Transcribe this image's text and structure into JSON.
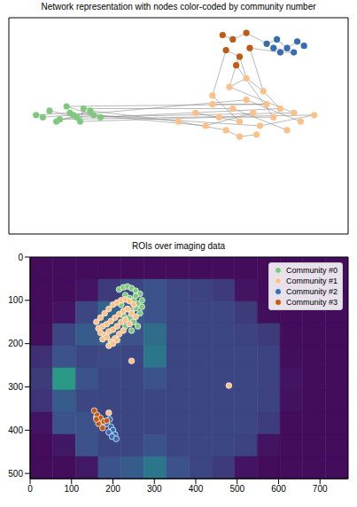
{
  "chart_data": [
    {
      "type": "network",
      "title": "Network representation with nodes color-coded by community number",
      "xlim": [
        0,
        100
      ],
      "ylim": [
        0,
        100
      ],
      "tick_labels": false,
      "series": [
        {
          "color": "#7fc97f",
          "x": [
            8,
            12,
            15,
            18,
            20,
            22,
            25,
            14,
            17,
            21,
            24,
            27,
            10,
            19
          ],
          "y": [
            55,
            57,
            53,
            56,
            54,
            58,
            55,
            52,
            59,
            52,
            57,
            54,
            54,
            55
          ]
        },
        {
          "color": "#fdc086",
          "x": [
            50,
            55,
            58,
            60,
            62,
            64,
            66,
            68,
            70,
            72,
            74,
            76,
            78,
            80,
            82,
            84,
            86,
            90,
            65,
            70,
            75,
            60,
            68,
            73
          ],
          "y": [
            52,
            56,
            50,
            60,
            54,
            48,
            58,
            52,
            62,
            56,
            50,
            60,
            54,
            58,
            48,
            56,
            52,
            55,
            68,
            72,
            66,
            64,
            45,
            46
          ]
        },
        {
          "color": "#386cb0",
          "x": [
            76,
            79,
            82,
            85,
            87,
            80,
            84,
            78
          ],
          "y": [
            88,
            90,
            86,
            89,
            87,
            84,
            84,
            86
          ]
        },
        {
          "color": "#bf5b17",
          "x": [
            63,
            66,
            70,
            64,
            68,
            71,
            67
          ],
          "y": [
            92,
            90,
            93,
            85,
            82,
            86,
            78
          ]
        }
      ],
      "edges": [
        [
          0,
          0,
          0,
          3
        ],
        [
          0,
          1,
          0,
          4
        ],
        [
          0,
          2,
          0,
          6
        ],
        [
          0,
          5,
          0,
          9
        ],
        [
          0,
          7,
          0,
          10
        ],
        [
          0,
          8,
          0,
          11
        ],
        [
          0,
          12,
          0,
          13
        ],
        [
          0,
          3,
          1,
          2
        ],
        [
          0,
          5,
          1,
          6
        ],
        [
          0,
          6,
          1,
          10
        ],
        [
          0,
          9,
          1,
          4
        ],
        [
          0,
          11,
          1,
          13
        ],
        [
          0,
          13,
          1,
          8
        ],
        [
          0,
          4,
          1,
          15
        ],
        [
          0,
          10,
          1,
          0
        ],
        [
          0,
          2,
          1,
          17
        ],
        [
          0,
          8,
          1,
          11
        ],
        [
          1,
          0,
          1,
          5
        ],
        [
          1,
          1,
          1,
          7
        ],
        [
          1,
          2,
          1,
          9
        ],
        [
          1,
          3,
          1,
          11
        ],
        [
          1,
          4,
          1,
          12
        ],
        [
          1,
          6,
          1,
          14
        ],
        [
          1,
          8,
          1,
          16
        ],
        [
          1,
          10,
          1,
          17
        ],
        [
          1,
          18,
          1,
          19
        ],
        [
          1,
          19,
          1,
          20
        ],
        [
          1,
          21,
          1,
          7
        ],
        [
          1,
          22,
          1,
          23
        ],
        [
          1,
          13,
          1,
          20
        ],
        [
          1,
          5,
          1,
          22
        ],
        [
          1,
          15,
          1,
          18
        ],
        [
          1,
          18,
          3,
          6
        ],
        [
          1,
          19,
          3,
          4
        ],
        [
          1,
          20,
          3,
          5
        ],
        [
          1,
          21,
          3,
          3
        ],
        [
          1,
          12,
          3,
          6
        ],
        [
          3,
          0,
          3,
          1
        ],
        [
          3,
          1,
          3,
          2
        ],
        [
          3,
          3,
          3,
          4
        ],
        [
          3,
          4,
          3,
          6
        ],
        [
          3,
          2,
          2,
          0
        ],
        [
          3,
          5,
          2,
          5
        ],
        [
          2,
          0,
          2,
          1
        ],
        [
          2,
          1,
          2,
          2
        ],
        [
          2,
          2,
          2,
          3
        ],
        [
          2,
          3,
          2,
          4
        ],
        [
          2,
          5,
          2,
          6
        ],
        [
          2,
          6,
          2,
          7
        ]
      ]
    },
    {
      "type": "scatter",
      "title": "ROIs over imaging data",
      "xlim": [
        0,
        768
      ],
      "ylim": [
        512,
        0
      ],
      "xticks": [
        0,
        100,
        200,
        300,
        400,
        500,
        600,
        700
      ],
      "yticks": [
        0,
        100,
        200,
        300,
        400,
        500
      ],
      "legend": "upper right",
      "crange": [
        0,
        1.4
      ],
      "cells": [
        [
          0.05,
          0.05,
          0.05,
          0.05,
          0.05,
          0.05,
          0.05,
          0.05,
          0.05,
          0.05,
          0.05,
          0.05,
          0.05,
          0.05
        ],
        [
          0.05,
          0.05,
          0.08,
          0.25,
          0.3,
          0.35,
          0.3,
          0.28,
          0.25,
          0.08,
          0.05,
          0.05,
          0.05,
          0.05
        ],
        [
          0.05,
          0.08,
          0.3,
          0.45,
          0.4,
          0.35,
          0.3,
          0.3,
          0.3,
          0.25,
          0.06,
          0.05,
          0.05,
          0.05
        ],
        [
          0.06,
          0.3,
          0.4,
          0.45,
          0.35,
          0.5,
          0.3,
          0.3,
          0.3,
          0.28,
          0.25,
          0.05,
          0.05,
          0.05
        ],
        [
          0.2,
          0.35,
          0.3,
          0.32,
          0.3,
          0.55,
          0.3,
          0.3,
          0.3,
          0.3,
          0.28,
          0.06,
          0.05,
          0.05
        ],
        [
          0.25,
          0.75,
          0.35,
          0.3,
          0.3,
          0.35,
          0.3,
          0.3,
          0.3,
          0.3,
          0.28,
          0.08,
          0.05,
          0.05
        ],
        [
          0.22,
          0.4,
          0.3,
          0.3,
          0.3,
          0.3,
          0.3,
          0.3,
          0.3,
          0.3,
          0.28,
          0.07,
          0.05,
          0.05
        ],
        [
          0.08,
          0.35,
          0.35,
          0.3,
          0.3,
          0.3,
          0.3,
          0.3,
          0.3,
          0.3,
          0.26,
          0.05,
          0.05,
          0.05
        ],
        [
          0.05,
          0.1,
          0.35,
          0.3,
          0.3,
          0.35,
          0.3,
          0.3,
          0.3,
          0.28,
          0.08,
          0.05,
          0.05,
          0.05
        ],
        [
          0.05,
          0.05,
          0.1,
          0.35,
          0.4,
          0.55,
          0.35,
          0.3,
          0.25,
          0.08,
          0.05,
          0.05,
          0.05,
          0.05
        ]
      ],
      "series": [
        {
          "name": "Community #0",
          "color": "#7fc97f",
          "marker": "circle",
          "x": [
            215,
            225,
            235,
            245,
            255,
            265,
            230,
            240,
            250,
            260,
            270,
            220,
            235,
            245,
            255,
            265,
            240,
            250,
            260,
            230,
            245,
            225,
            255,
            270
          ],
          "y": [
            75,
            70,
            68,
            72,
            78,
            85,
            88,
            95,
            100,
            108,
            115,
            110,
            120,
            125,
            118,
            130,
            140,
            150,
            160,
            160,
            170,
            135,
            90,
            100
          ]
        },
        {
          "name": "Community #1",
          "color": "#fdc086",
          "marker": "circle",
          "x": [
            160,
            170,
            180,
            190,
            200,
            210,
            220,
            230,
            240,
            250,
            165,
            175,
            185,
            195,
            205,
            215,
            225,
            235,
            245,
            255,
            170,
            180,
            190,
            200,
            210,
            220,
            230,
            240,
            175,
            185,
            195,
            205,
            215,
            225,
            190,
            200,
            210,
            245,
            480,
            160,
            175,
            190
          ],
          "y": [
            150,
            140,
            130,
            120,
            110,
            105,
            100,
            98,
            102,
            110,
            165,
            160,
            155,
            148,
            140,
            132,
            125,
            120,
            130,
            138,
            175,
            180,
            172,
            168,
            160,
            150,
            145,
            155,
            190,
            185,
            195,
            188,
            178,
            170,
            205,
            200,
            192,
            240,
            297,
            370,
            380,
            360
          ]
        },
        {
          "name": "Community #2",
          "color": "#386cb0",
          "marker": "circle",
          "x": [
            185,
            195,
            200,
            205,
            190,
            198,
            208,
            192
          ],
          "y": [
            385,
            392,
            400,
            410,
            405,
            415,
            420,
            375
          ]
        },
        {
          "name": "Community #3",
          "color": "#bf5b17",
          "marker": "circle",
          "x": [
            155,
            162,
            170,
            178,
            165,
            175,
            185,
            160
          ],
          "y": [
            355,
            365,
            372,
            380,
            385,
            395,
            378,
            375
          ]
        }
      ]
    }
  ]
}
